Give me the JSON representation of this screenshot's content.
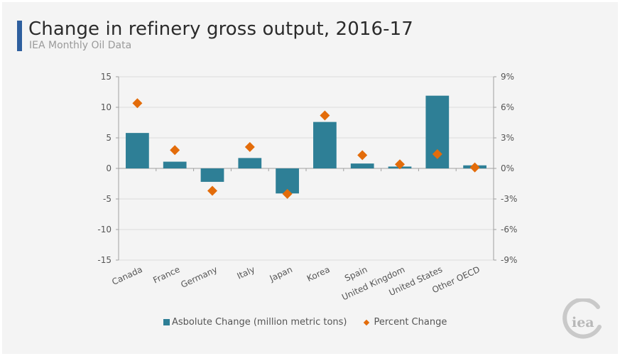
{
  "header": {
    "title": "Change in refinery gross output, 2016-17",
    "subtitle": "IEA Monthly Oil Data"
  },
  "logo": {
    "text": "iea",
    "icon": "iea-logo-icon"
  },
  "colors": {
    "bar": "#2e7f96",
    "marker": "#e36c0a",
    "title_accent": "#2e5f9e"
  },
  "chart_data": {
    "type": "bar",
    "title": "Change in refinery gross output, 2016-17",
    "subtitle": "IEA Monthly Oil Data",
    "categories": [
      "Canada",
      "France",
      "Germany",
      "Italy",
      "Japan",
      "Korea",
      "Spain",
      "United Kingdom",
      "United States",
      "Other OECD"
    ],
    "series": [
      {
        "name": "Asbolute Change (million metric tons)",
        "type": "bar",
        "axis": "left",
        "values": [
          5.8,
          1.1,
          -2.2,
          1.7,
          -4.1,
          7.6,
          0.8,
          0.3,
          11.9,
          0.5
        ]
      },
      {
        "name": "Percent Change",
        "type": "scatter",
        "axis": "right",
        "values": [
          6.4,
          1.8,
          -2.2,
          2.1,
          -2.5,
          5.2,
          1.3,
          0.4,
          1.4,
          0.1
        ]
      }
    ],
    "y_left": {
      "lim": [
        -15,
        15
      ],
      "ticks": [
        15,
        10,
        5,
        0,
        -5,
        -10,
        -15
      ],
      "tick_labels": [
        "15",
        "10",
        "5",
        "0",
        "-5",
        "-10",
        "-15"
      ]
    },
    "y_right": {
      "lim": [
        -9,
        9
      ],
      "ticks": [
        9,
        6,
        3,
        0,
        -3,
        -6,
        -9
      ],
      "tick_labels": [
        "9%",
        "6%",
        "3%",
        "0%",
        "-3%",
        "-6%",
        "-9%"
      ]
    },
    "xlabel": "",
    "ylabel": "",
    "grid": true,
    "legend": {
      "placement": "bottom",
      "entries": [
        "Asbolute Change (million metric tons)",
        "Percent Change"
      ]
    }
  }
}
